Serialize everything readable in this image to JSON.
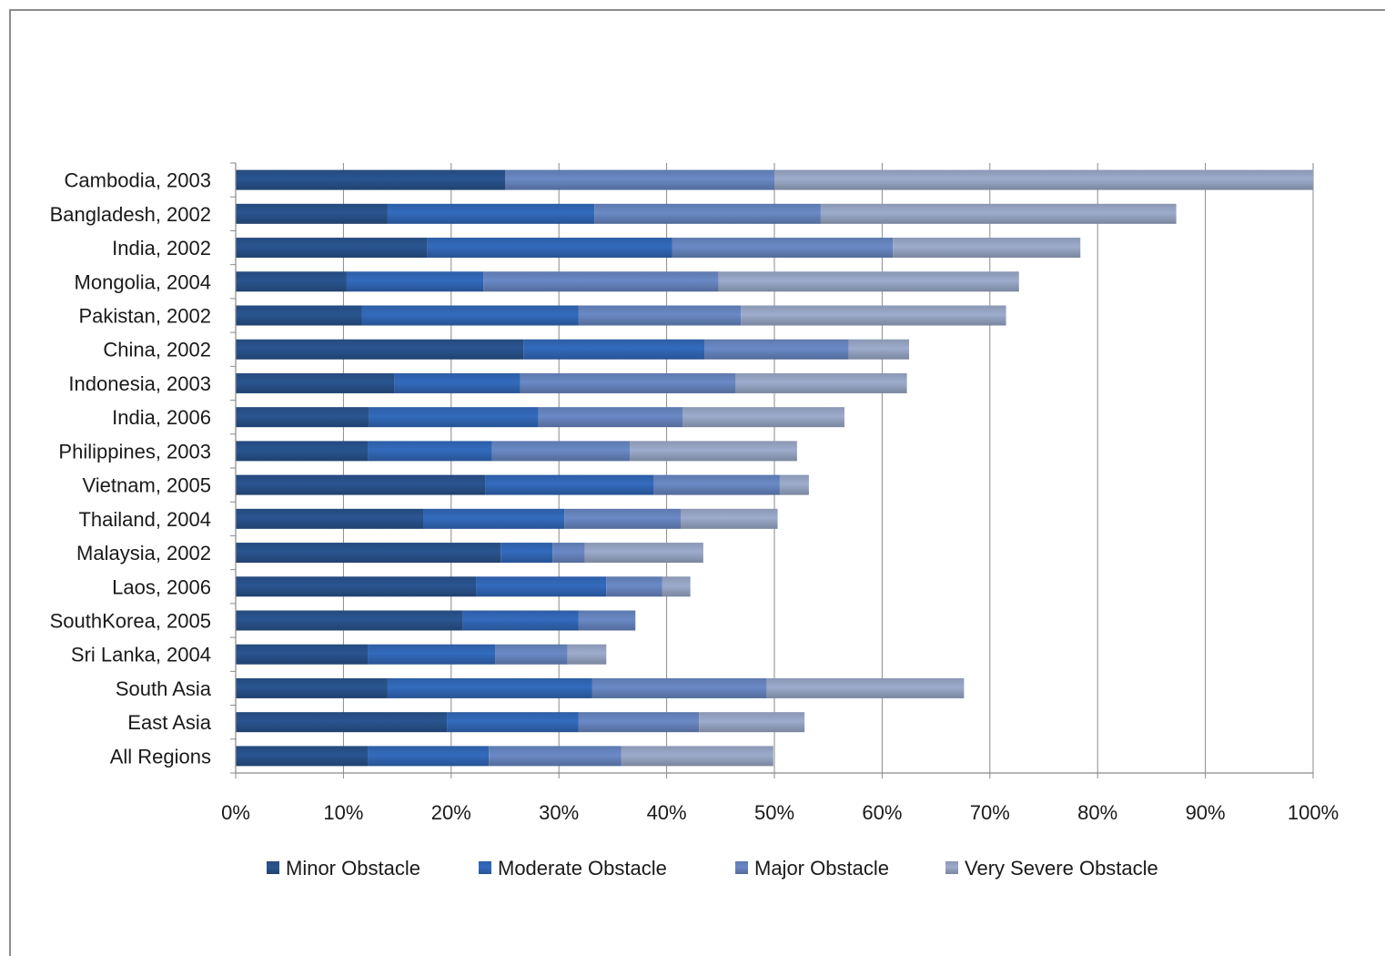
{
  "chart_data": {
    "type": "bar",
    "orientation": "horizontal",
    "stacked": true,
    "categories": [
      "Cambodia, 2003",
      "Bangladesh, 2002",
      "India, 2002",
      "Mongolia, 2004",
      "Pakistan, 2002",
      "China, 2002",
      "Indonesia, 2003",
      "India, 2006",
      "Philippines, 2003",
      "Vietnam, 2005",
      "Thailand, 2004",
      "Malaysia, 2002",
      "Laos, 2006",
      "SouthKorea, 2005",
      "Sri Lanka, 2004",
      "South Asia",
      "East Asia",
      "All Regions"
    ],
    "series": [
      {
        "name": "Minor Obstacle",
        "color": "#2a5590",
        "values": [
          25,
          14.1,
          17.8,
          10.3,
          11.7,
          26.7,
          14.7,
          12.4,
          12.3,
          23.2,
          17.4,
          24.6,
          22.3,
          21.1,
          12.3,
          14.1,
          19.6,
          12.3
        ]
      },
      {
        "name": "Moderate Obstacle",
        "color": "#336bbd",
        "values": [
          0,
          19.2,
          22.7,
          12.7,
          20.1,
          16.8,
          11.7,
          15.7,
          11.5,
          15.6,
          13.1,
          4.8,
          12.1,
          10.7,
          11.8,
          19,
          12.2,
          11.2
        ]
      },
      {
        "name": "Major Obstacle",
        "color": "#6a89c6",
        "values": [
          25,
          21,
          20.5,
          21.8,
          15.1,
          13.4,
          20,
          13.4,
          12.8,
          11.7,
          10.8,
          3,
          5.2,
          5.3,
          6.7,
          16.2,
          11.2,
          12.3
        ]
      },
      {
        "name": "Very Severe Obstacle",
        "color": "#9daccc",
        "values": [
          50,
          33,
          17.4,
          27.9,
          24.6,
          5.6,
          15.9,
          15,
          15.5,
          2.7,
          9,
          11,
          2.6,
          0,
          3.6,
          18.3,
          9.8,
          14.1
        ]
      }
    ],
    "xlim": [
      0,
      100
    ],
    "xticks": [
      "0%",
      "10%",
      "20%",
      "30%",
      "40%",
      "50%",
      "60%",
      "70%",
      "80%",
      "90%",
      "100%"
    ],
    "grid": true,
    "legend_position": "bottom"
  }
}
